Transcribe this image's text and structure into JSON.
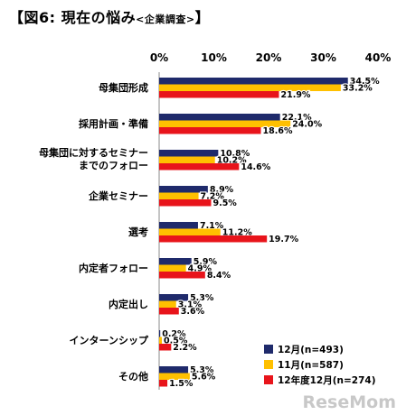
{
  "title": {
    "open": "【",
    "main": "図6: 現在の悩み",
    "sub": "<企業調査>",
    "close": "】"
  },
  "watermark": "ReseMom",
  "colors": {
    "navy": "#1F2A6B",
    "yellow": "#FFC000",
    "red": "#E8141B",
    "axis": "#888888",
    "text": "#000000"
  },
  "chart_data": {
    "type": "bar",
    "orientation": "horizontal",
    "xlim": [
      0,
      40
    ],
    "x_ticks": [
      "0%",
      "10%",
      "20%",
      "30%",
      "40%"
    ],
    "legend_position": "bottom-right",
    "categories": [
      [
        "母集団形成"
      ],
      [
        "採用計画・準備"
      ],
      [
        "母集団に対するセミナー",
        "までのフォロー"
      ],
      [
        "企業セミナー"
      ],
      [
        "選考"
      ],
      [
        "内定者フォロー"
      ],
      [
        "内定出し"
      ],
      [
        "インターンシップ"
      ],
      [
        "その他"
      ]
    ],
    "series": [
      {
        "name": "12月(n=493)",
        "color": "#1F2A6B",
        "values": [
          34.5,
          22.1,
          10.8,
          8.9,
          7.1,
          5.9,
          5.3,
          0.2,
          5.3
        ]
      },
      {
        "name": "11月(n=587)",
        "color": "#FFC000",
        "values": [
          33.2,
          24.0,
          10.2,
          7.2,
          11.2,
          4.9,
          3.1,
          0.5,
          5.6
        ]
      },
      {
        "name": "12年度12月(n=274)",
        "color": "#E8141B",
        "values": [
          21.9,
          18.6,
          14.6,
          9.5,
          19.7,
          8.4,
          3.6,
          2.2,
          1.5
        ]
      }
    ],
    "value_suffix": "%"
  }
}
